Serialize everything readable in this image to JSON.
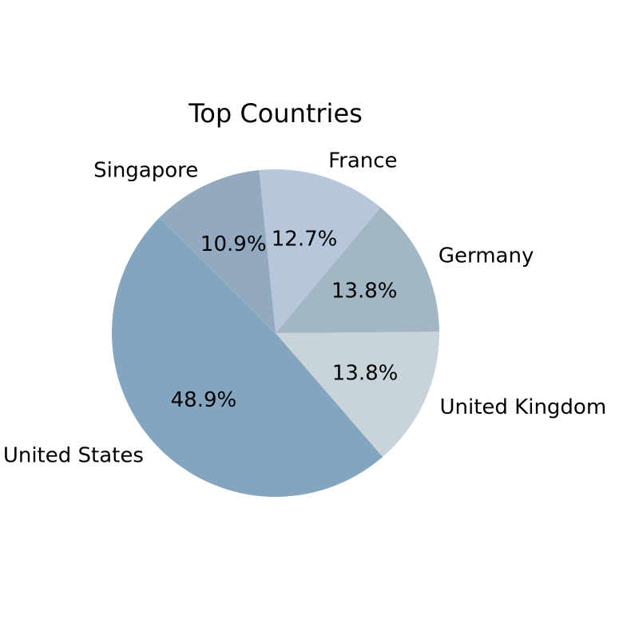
{
  "chart_data": {
    "type": "pie",
    "title": "Top Countries",
    "categories": [
      "United States",
      "United Kingdom",
      "Germany",
      "France",
      "Singapore"
    ],
    "values": [
      48.9,
      13.8,
      13.8,
      12.7,
      10.9
    ],
    "value_labels": [
      "48.9%",
      "13.8%",
      "13.8%",
      "12.7%",
      "10.9%"
    ],
    "colors": [
      "#84a5c0",
      "#c8d3da",
      "#a3b6c3",
      "#b6c6db",
      "#93a9bf"
    ],
    "start_angle_deg": 135,
    "direction": "counterclockwise",
    "legend": "none"
  }
}
